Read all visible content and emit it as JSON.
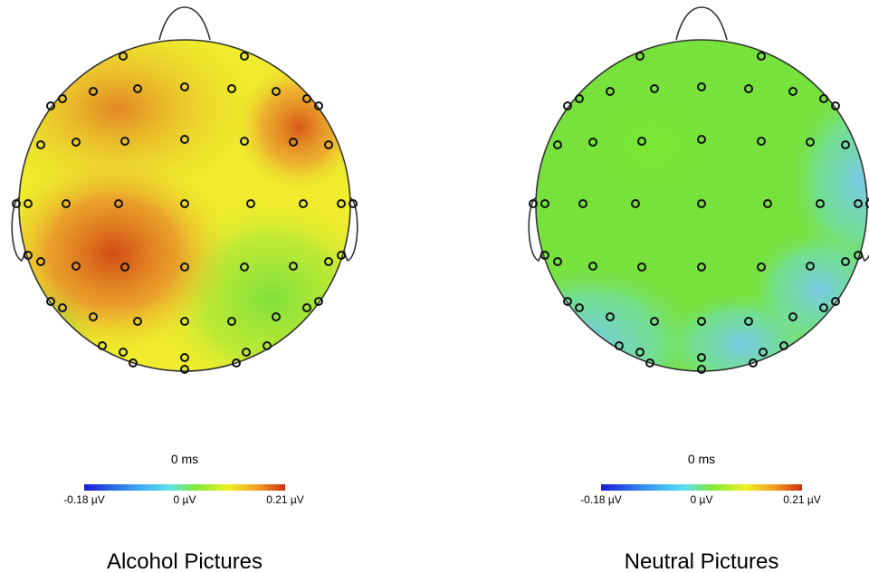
{
  "panels": [
    {
      "id": "alcohol",
      "title": "Alcohol Pictures",
      "time_label": "0 ms",
      "scale": {
        "min_label": "-0.18 µV",
        "mid_label": "0 µV",
        "max_label": "0.21 µV"
      }
    },
    {
      "id": "neutral",
      "title": "Neutral Pictures",
      "time_label": "0 ms",
      "scale": {
        "min_label": "-0.18 µV",
        "mid_label": "0 µV",
        "max_label": "0.21 µV"
      }
    }
  ],
  "colorscale": [
    "#1a1ad8",
    "#3aa0f0",
    "#5de0f0",
    "#7ee83a",
    "#f0f020",
    "#f0a020",
    "#d03010"
  ],
  "head_outline_color": "#333333",
  "electrode_marker": "circle"
}
